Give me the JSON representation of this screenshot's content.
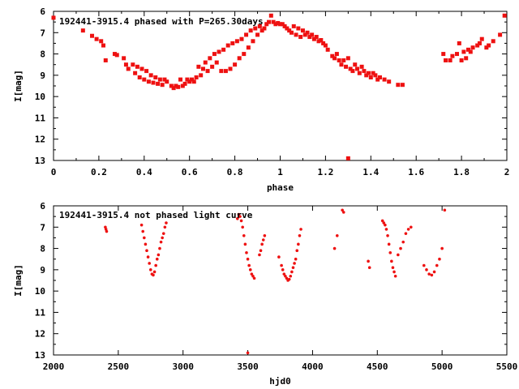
{
  "chart_data": [
    {
      "type": "scatter",
      "title": "192441-3915.4 phased with P=265.30days",
      "xlabel": "phase",
      "ylabel": "I[mag]",
      "xlim": [
        0,
        2
      ],
      "ylim": [
        6,
        13
      ],
      "y_inverted": true,
      "x_ticks": [
        "0",
        "0.2",
        "0.4",
        "0.6",
        "0.8",
        "1",
        "1.2",
        "1.4",
        "1.6",
        "1.8",
        "2"
      ],
      "y_ticks": [
        "6",
        "7",
        "8",
        "9",
        "10",
        "11",
        "12",
        "13"
      ],
      "marker": "filled-square-large",
      "color": "#ee1111",
      "points": [
        [
          0.0,
          6.3
        ],
        [
          0.13,
          6.9
        ],
        [
          0.17,
          7.15
        ],
        [
          0.19,
          7.3
        ],
        [
          0.21,
          7.4
        ],
        [
          0.22,
          7.6
        ],
        [
          0.23,
          8.3
        ],
        [
          0.27,
          8.0
        ],
        [
          0.28,
          8.05
        ],
        [
          0.31,
          8.2
        ],
        [
          0.32,
          8.5
        ],
        [
          0.33,
          8.7
        ],
        [
          0.35,
          8.5
        ],
        [
          0.36,
          8.9
        ],
        [
          0.37,
          8.6
        ],
        [
          0.38,
          9.1
        ],
        [
          0.39,
          8.7
        ],
        [
          0.4,
          9.2
        ],
        [
          0.41,
          8.8
        ],
        [
          0.42,
          9.3
        ],
        [
          0.43,
          9.0
        ],
        [
          0.44,
          9.35
        ],
        [
          0.45,
          9.1
        ],
        [
          0.46,
          9.4
        ],
        [
          0.47,
          9.2
        ],
        [
          0.48,
          9.45
        ],
        [
          0.49,
          9.2
        ],
        [
          0.5,
          9.3
        ],
        [
          0.52,
          9.5
        ],
        [
          0.53,
          9.6
        ],
        [
          0.54,
          9.5
        ],
        [
          0.55,
          9.55
        ],
        [
          0.56,
          9.2
        ],
        [
          0.57,
          9.5
        ],
        [
          0.58,
          9.4
        ],
        [
          0.59,
          9.2
        ],
        [
          0.6,
          9.3
        ],
        [
          0.61,
          9.2
        ],
        [
          0.62,
          9.3
        ],
        [
          0.63,
          9.1
        ],
        [
          0.64,
          8.6
        ],
        [
          0.65,
          9.0
        ],
        [
          0.66,
          8.7
        ],
        [
          0.67,
          8.4
        ],
        [
          0.68,
          8.8
        ],
        [
          0.69,
          8.2
        ],
        [
          0.7,
          8.6
        ],
        [
          0.71,
          8.0
        ],
        [
          0.72,
          8.4
        ],
        [
          0.73,
          7.9
        ],
        [
          0.74,
          8.8
        ],
        [
          0.75,
          7.8
        ],
        [
          0.76,
          8.8
        ],
        [
          0.77,
          7.6
        ],
        [
          0.78,
          8.7
        ],
        [
          0.79,
          7.5
        ],
        [
          0.8,
          8.5
        ],
        [
          0.81,
          7.4
        ],
        [
          0.82,
          8.2
        ],
        [
          0.83,
          7.3
        ],
        [
          0.84,
          8.0
        ],
        [
          0.85,
          7.1
        ],
        [
          0.86,
          7.7
        ],
        [
          0.87,
          6.9
        ],
        [
          0.88,
          7.4
        ],
        [
          0.89,
          6.8
        ],
        [
          0.9,
          7.1
        ],
        [
          0.91,
          6.7
        ],
        [
          0.92,
          6.9
        ],
        [
          0.93,
          6.8
        ],
        [
          0.94,
          6.6
        ],
        [
          0.95,
          6.5
        ],
        [
          0.96,
          6.2
        ],
        [
          0.97,
          6.5
        ],
        [
          0.98,
          6.6
        ],
        [
          0.99,
          6.55
        ],
        [
          1.0,
          6.6
        ],
        [
          1.01,
          6.6
        ],
        [
          1.02,
          6.7
        ],
        [
          1.03,
          6.8
        ],
        [
          1.04,
          6.9
        ],
        [
          1.05,
          7.0
        ],
        [
          1.06,
          6.7
        ],
        [
          1.07,
          7.1
        ],
        [
          1.08,
          6.8
        ],
        [
          1.09,
          7.2
        ],
        [
          1.1,
          6.9
        ],
        [
          1.11,
          7.1
        ],
        [
          1.12,
          7.0
        ],
        [
          1.13,
          7.2
        ],
        [
          1.14,
          7.1
        ],
        [
          1.15,
          7.3
        ],
        [
          1.16,
          7.2
        ],
        [
          1.17,
          7.4
        ],
        [
          1.18,
          7.35
        ],
        [
          1.19,
          7.5
        ],
        [
          1.2,
          7.6
        ],
        [
          1.21,
          7.8
        ],
        [
          1.23,
          8.1
        ],
        [
          1.24,
          8.2
        ],
        [
          1.25,
          8.0
        ],
        [
          1.26,
          8.3
        ],
        [
          1.27,
          8.5
        ],
        [
          1.28,
          8.3
        ],
        [
          1.29,
          8.6
        ],
        [
          1.3,
          8.2
        ],
        [
          1.31,
          8.7
        ],
        [
          1.32,
          8.8
        ],
        [
          1.33,
          8.5
        ],
        [
          1.34,
          8.7
        ],
        [
          1.35,
          8.9
        ],
        [
          1.36,
          8.6
        ],
        [
          1.37,
          8.8
        ],
        [
          1.38,
          9.0
        ],
        [
          1.39,
          8.9
        ],
        [
          1.4,
          9.1
        ],
        [
          1.41,
          8.9
        ],
        [
          1.42,
          9.0
        ],
        [
          1.43,
          9.2
        ],
        [
          1.44,
          9.1
        ],
        [
          1.46,
          9.2
        ],
        [
          1.48,
          9.3
        ],
        [
          1.52,
          9.45
        ],
        [
          1.54,
          9.45
        ],
        [
          1.3,
          12.9
        ],
        [
          1.72,
          8.0
        ],
        [
          1.73,
          8.3
        ],
        [
          1.75,
          8.3
        ],
        [
          1.76,
          8.1
        ],
        [
          1.78,
          8.0
        ],
        [
          1.79,
          7.5
        ],
        [
          1.8,
          8.3
        ],
        [
          1.81,
          7.9
        ],
        [
          1.82,
          8.2
        ],
        [
          1.83,
          7.8
        ],
        [
          1.84,
          7.9
        ],
        [
          1.85,
          7.7
        ],
        [
          1.87,
          7.6
        ],
        [
          1.88,
          7.5
        ],
        [
          1.89,
          7.3
        ],
        [
          1.91,
          7.7
        ],
        [
          1.92,
          7.6
        ],
        [
          1.94,
          7.4
        ],
        [
          1.97,
          7.1
        ],
        [
          1.99,
          6.2
        ]
      ]
    },
    {
      "type": "scatter",
      "title": "192441-3915.4 not phased light curve",
      "xlabel": "hjd0",
      "ylabel": "I[mag]",
      "xlim": [
        2000,
        5500
      ],
      "ylim": [
        6,
        13
      ],
      "y_inverted": true,
      "x_ticks": [
        "2000",
        "2500",
        "3000",
        "3500",
        "4000",
        "4500",
        "5000",
        "5500"
      ],
      "y_ticks": [
        "6",
        "7",
        "8",
        "9",
        "10",
        "11",
        "12",
        "13"
      ],
      "marker": "filled-circle-small",
      "color": "#ee1111",
      "points": [
        [
          2400,
          7.0
        ],
        [
          2405,
          7.1
        ],
        [
          2410,
          7.2
        ],
        [
          2680,
          6.9
        ],
        [
          2690,
          7.2
        ],
        [
          2700,
          7.5
        ],
        [
          2710,
          7.8
        ],
        [
          2720,
          8.1
        ],
        [
          2730,
          8.4
        ],
        [
          2740,
          8.7
        ],
        [
          2750,
          9.0
        ],
        [
          2760,
          9.2
        ],
        [
          2770,
          9.25
        ],
        [
          2780,
          9.1
        ],
        [
          2790,
          8.8
        ],
        [
          2800,
          8.5
        ],
        [
          2810,
          8.3
        ],
        [
          2820,
          8.0
        ],
        [
          2830,
          7.7
        ],
        [
          2840,
          7.5
        ],
        [
          2850,
          7.3
        ],
        [
          2860,
          7.0
        ],
        [
          2870,
          6.8
        ],
        [
          3420,
          6.6
        ],
        [
          3430,
          6.4
        ],
        [
          3440,
          6.5
        ],
        [
          3450,
          6.7
        ],
        [
          3460,
          7.0
        ],
        [
          3470,
          7.4
        ],
        [
          3480,
          7.8
        ],
        [
          3490,
          8.2
        ],
        [
          3500,
          8.5
        ],
        [
          3510,
          8.8
        ],
        [
          3520,
          9.0
        ],
        [
          3530,
          9.2
        ],
        [
          3540,
          9.3
        ],
        [
          3550,
          9.4
        ],
        [
          3500,
          12.9
        ],
        [
          3590,
          8.3
        ],
        [
          3600,
          8.1
        ],
        [
          3610,
          7.8
        ],
        [
          3620,
          7.6
        ],
        [
          3630,
          7.4
        ],
        [
          3740,
          8.4
        ],
        [
          3760,
          8.8
        ],
        [
          3770,
          9.0
        ],
        [
          3780,
          9.2
        ],
        [
          3790,
          9.3
        ],
        [
          3800,
          9.4
        ],
        [
          3810,
          9.5
        ],
        [
          3820,
          9.45
        ],
        [
          3830,
          9.3
        ],
        [
          3840,
          9.1
        ],
        [
          3850,
          8.9
        ],
        [
          3860,
          8.7
        ],
        [
          3870,
          8.5
        ],
        [
          3880,
          8.1
        ],
        [
          3890,
          7.8
        ],
        [
          3900,
          7.4
        ],
        [
          3910,
          7.1
        ],
        [
          4170,
          8.0
        ],
        [
          4190,
          7.4
        ],
        [
          4230,
          6.2
        ],
        [
          4240,
          6.3
        ],
        [
          4430,
          8.6
        ],
        [
          4440,
          8.9
        ],
        [
          4540,
          6.7
        ],
        [
          4550,
          6.8
        ],
        [
          4560,
          6.9
        ],
        [
          4570,
          7.1
        ],
        [
          4580,
          7.4
        ],
        [
          4590,
          7.8
        ],
        [
          4600,
          8.2
        ],
        [
          4610,
          8.6
        ],
        [
          4620,
          8.9
        ],
        [
          4630,
          9.1
        ],
        [
          4640,
          9.3
        ],
        [
          4660,
          8.3
        ],
        [
          4680,
          8.0
        ],
        [
          4700,
          7.7
        ],
        [
          4720,
          7.3
        ],
        [
          4740,
          7.1
        ],
        [
          4760,
          7.0
        ],
        [
          4860,
          8.8
        ],
        [
          4880,
          9.0
        ],
        [
          4900,
          9.2
        ],
        [
          4920,
          9.25
        ],
        [
          4940,
          9.1
        ],
        [
          4960,
          8.8
        ],
        [
          4980,
          8.5
        ],
        [
          5000,
          8.0
        ],
        [
          5020,
          6.2
        ]
      ]
    }
  ]
}
